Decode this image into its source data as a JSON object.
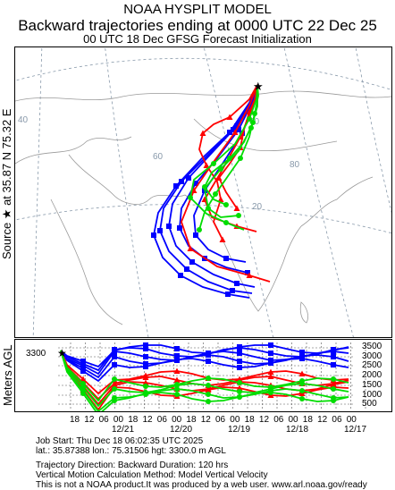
{
  "header": {
    "model": "NOAA HYSPLIT MODEL",
    "title": "Backward trajectories ending at 0000 UTC 22 Dec 25",
    "subtitle": "00 UTC 18 Dec    GFSG  Forecast Initialization"
  },
  "map": {
    "source_label": "Source ★ at   35.87 N   75.32 E",
    "lon_labels": [
      {
        "text": "40"
      },
      {
        "text": "60"
      },
      {
        "text": "80"
      },
      {
        "text": "40"
      },
      {
        "text": "20"
      }
    ],
    "lat_labels": [
      {
        "text": "40"
      },
      {
        "text": "20"
      }
    ]
  },
  "height_panel": {
    "ylabel": "Meters AGL",
    "source_height": "3300",
    "yticks": [
      "3500",
      "3000",
      "2500",
      "2000",
      "1500",
      "1000",
      "500"
    ],
    "xticks": [
      "18",
      "12",
      "06",
      "00",
      "18",
      "12",
      "06",
      "00",
      "18",
      "12",
      "06",
      "00",
      "18",
      "12",
      "06",
      "00",
      "18",
      "12",
      "06",
      "00"
    ],
    "dates": [
      "12/21",
      "12/20",
      "12/19",
      "12/18",
      "12/17"
    ]
  },
  "footer": {
    "line1": "Job Start: Thu Dec 18 06:02:35 UTC 2025",
    "line2": "lat.: 35.87388   lon.: 75.31506   hgt: 3300.0 m AGL",
    "line3": "Trajectory Direction: Backward       Duration: 120 hrs",
    "line4": "Vertical Motion Calculation Method: Model Vertical Velocity",
    "line5": "This is not a NOAA product.It was produced by a web user. www.arl.noaa.gov/ready"
  },
  "colors": {
    "red": "#ff0000",
    "blue": "#0000ff",
    "green": "#00dd00",
    "coast": "#999999",
    "grid": "#8899aa"
  }
}
